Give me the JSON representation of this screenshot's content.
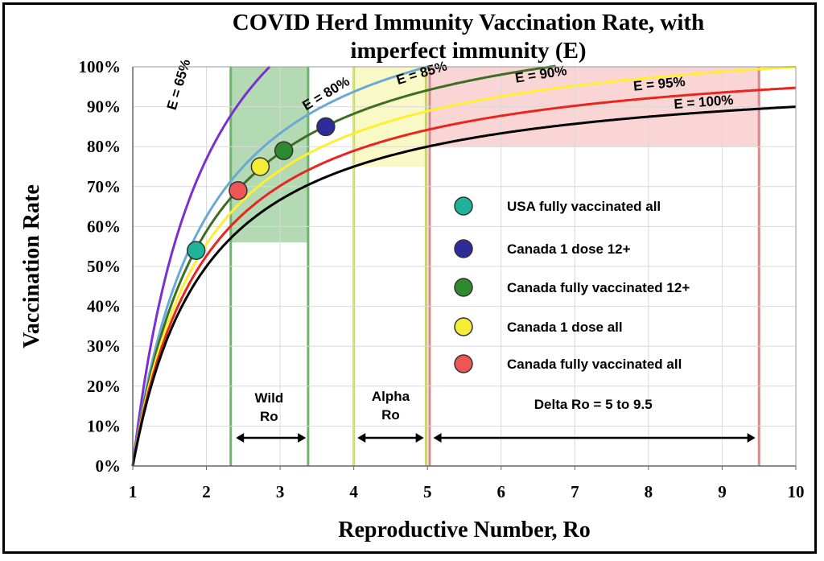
{
  "chart_data": {
    "type": "line",
    "title_line1": "COVID Herd Immunity Vaccination Rate, with",
    "title_line2": "imperfect immunity (E)",
    "xlabel": "Reproductive Number, Ro",
    "ylabel": "Vaccination Rate",
    "xlim": [
      1,
      10
    ],
    "ylim": [
      0,
      100
    ],
    "x_ticks": [
      1,
      2,
      3,
      4,
      5,
      6,
      7,
      8,
      9,
      10
    ],
    "y_ticks": [
      "0%",
      "10%",
      "20%",
      "30%",
      "40%",
      "50%",
      "60%",
      "70%",
      "80%",
      "90%",
      "100%"
    ],
    "grid": true,
    "series": [
      {
        "name": "E = 65%",
        "efficacy": 0.65,
        "color": "#7b2fd0",
        "label_x": 1.58,
        "label_y": 89
      },
      {
        "name": "E = 80%",
        "efficacy": 0.8,
        "color": "#6aa9d6",
        "label_x": 3.35,
        "label_y": 89
      },
      {
        "name": "E = 85%",
        "efficacy": 0.85,
        "color": "#3e6e24",
        "label_x": 4.6,
        "label_y": 95.5
      },
      {
        "name": "E = 90%",
        "efficacy": 0.9,
        "color": "#ffee33",
        "label_x": 6.2,
        "label_y": 96
      },
      {
        "name": "E = 95%",
        "efficacy": 0.95,
        "color": "#e8261f",
        "label_x": 7.8,
        "label_y": 94
      },
      {
        "name": "E = 100%",
        "efficacy": 1.0,
        "color": "#000000",
        "label_x": 8.35,
        "label_y": 89.5
      }
    ],
    "points": [
      {
        "label": "USA fully vaccinated all",
        "x": 1.86,
        "y": 54,
        "color": "#1fb39a"
      },
      {
        "label": "Canada 1 dose 12+",
        "x": 3.62,
        "y": 85,
        "color": "#2d2c9a"
      },
      {
        "label": "Canada fully vaccinated 12+",
        "x": 3.05,
        "y": 79,
        "color": "#2e8a2e"
      },
      {
        "label": "Canada 1 dose all",
        "x": 2.73,
        "y": 75,
        "color": "#f3ee35"
      },
      {
        "label": "Canada fully vaccinated all",
        "x": 2.43,
        "y": 69,
        "color": "#ee5555"
      }
    ],
    "regions": [
      {
        "label_lines": [
          "Wild",
          "Ro"
        ],
        "x0": 2.33,
        "x1": 3.38,
        "y0": 56,
        "y1": 100,
        "fill": "#4aa84a",
        "edge": "#6ab56a",
        "arrow_x0": 2.4,
        "arrow_x1": 3.35
      },
      {
        "label_lines": [
          "Alpha",
          "Ro"
        ],
        "x0": 4.0,
        "x1": 4.98,
        "y0": 75,
        "y1": 100,
        "fill": "#f0f07a",
        "edge": "#c8d46a",
        "arrow_x0": 4.05,
        "arrow_x1": 4.95
      },
      {
        "label_lines": [
          "Delta Ro = 5 to 9.5"
        ],
        "x0": 5.03,
        "x1": 9.5,
        "y0": 80,
        "y1": 100,
        "fill": "#f29a9a",
        "edge": "#d88a8a",
        "arrow_x0": 5.08,
        "arrow_x1": 9.45
      }
    ]
  },
  "legend": {
    "placement": "center-right",
    "items": [
      {
        "label": "USA fully vaccinated all",
        "color": "#1fb39a"
      },
      {
        "label": "Canada 1 dose 12+",
        "color": "#2d2c9a"
      },
      {
        "label": "Canada fully vaccinated 12+",
        "color": "#2e8a2e"
      },
      {
        "label": "Canada 1 dose all",
        "color": "#f3ee35"
      },
      {
        "label": "Canada fully vaccinated all",
        "color": "#ee5555"
      }
    ]
  }
}
